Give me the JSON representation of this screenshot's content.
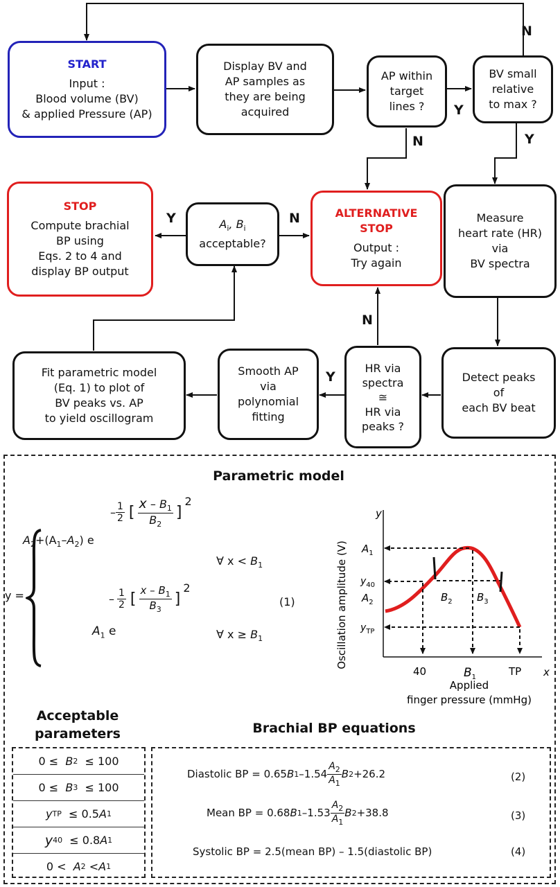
{
  "flowchart": {
    "start": {
      "head": "START",
      "lines": [
        "Input :",
        "Blood volume (BV)",
        "& applied Pressure (AP)"
      ]
    },
    "display": {
      "lines": [
        "Display BV and",
        "AP samples as",
        "they are being",
        "acquired"
      ]
    },
    "ap_within": {
      "lines": [
        "AP within",
        "target",
        "lines ?"
      ]
    },
    "bv_small": {
      "lines": [
        "BV small",
        "relative",
        "to max ?"
      ]
    },
    "stop": {
      "head": "STOP",
      "lines": [
        "Compute brachial",
        "BP using",
        "Eqs. 2 to 4 and",
        "display BP output"
      ]
    },
    "acceptable": {
      "line1_a": "A",
      "line1_b": "i",
      "line1_c": ", B",
      "line1_d": "i",
      "line2": "acceptable?"
    },
    "alt_stop": {
      "head": "ALTERNATIVE STOP",
      "head_lines": [
        "ALTERNATIVE",
        "STOP"
      ],
      "lines": [
        "Output :",
        "Try again"
      ]
    },
    "measure_hr": {
      "lines": [
        "Measure",
        "heart rate (HR)",
        "via",
        "BV spectra"
      ]
    },
    "fit_model": {
      "lines": [
        "Fit parametric model",
        "(Eq. 1) to plot of",
        "BV peaks vs. AP",
        "to yield oscillogram"
      ]
    },
    "smooth_ap": {
      "lines": [
        "Smooth AP",
        "via",
        "polynomial",
        "fitting"
      ]
    },
    "hr_compare": {
      "lines": [
        "HR via",
        "spectra",
        "≅",
        "HR via",
        "peaks ?"
      ]
    },
    "detect_peaks": {
      "lines": [
        "Detect peaks",
        "of",
        "each BV beat"
      ]
    },
    "labels": {
      "N": "N",
      "Y": "Y"
    }
  },
  "parametric_model": {
    "title": "Parametric model",
    "eq_number": "(1)",
    "y_eq": "y =",
    "case1_base": "+(A",
    "forall1": "∀ x < ",
    "forall2": "∀ x ≥ "
  },
  "graph": {
    "y_axis_label": "Oscillation amplitude (V)",
    "y_var": "y",
    "x_var": "x",
    "x_label_1": "Applied",
    "x_label_2": "finger pressure (mmHg)",
    "x_ticks": [
      "40",
      "B1",
      "TP"
    ],
    "y_ticks": [
      "A1",
      "y40",
      "A2",
      "yTP"
    ],
    "inner_labels": [
      "B2",
      "B3"
    ],
    "curve_color": "#e01e1e"
  },
  "acceptable_parameters": {
    "title_lines": [
      "Acceptable",
      "parameters"
    ],
    "rows": [
      "0 ≤ B2 ≤ 100",
      "0 ≤ B3 ≤ 100",
      "yTP ≤ 0.5A1",
      "y40 ≤ 0.8A1",
      "0 < A2 < A1"
    ]
  },
  "brachial_bp": {
    "title": "Brachial BP equations",
    "diastolic_label": "Diastolic BP = 0.65",
    "diastolic_mid": " –1.54",
    "diastolic_end": "+26.2",
    "mean_label": "Mean BP = 0.68",
    "mean_mid": " –1.53",
    "mean_end": "+38.8",
    "systolic": "Systolic BP = 2.5(mean BP) – 1.5(diastolic BP)",
    "eq_numbers": [
      "(2)",
      "(3)",
      "(4)"
    ]
  }
}
